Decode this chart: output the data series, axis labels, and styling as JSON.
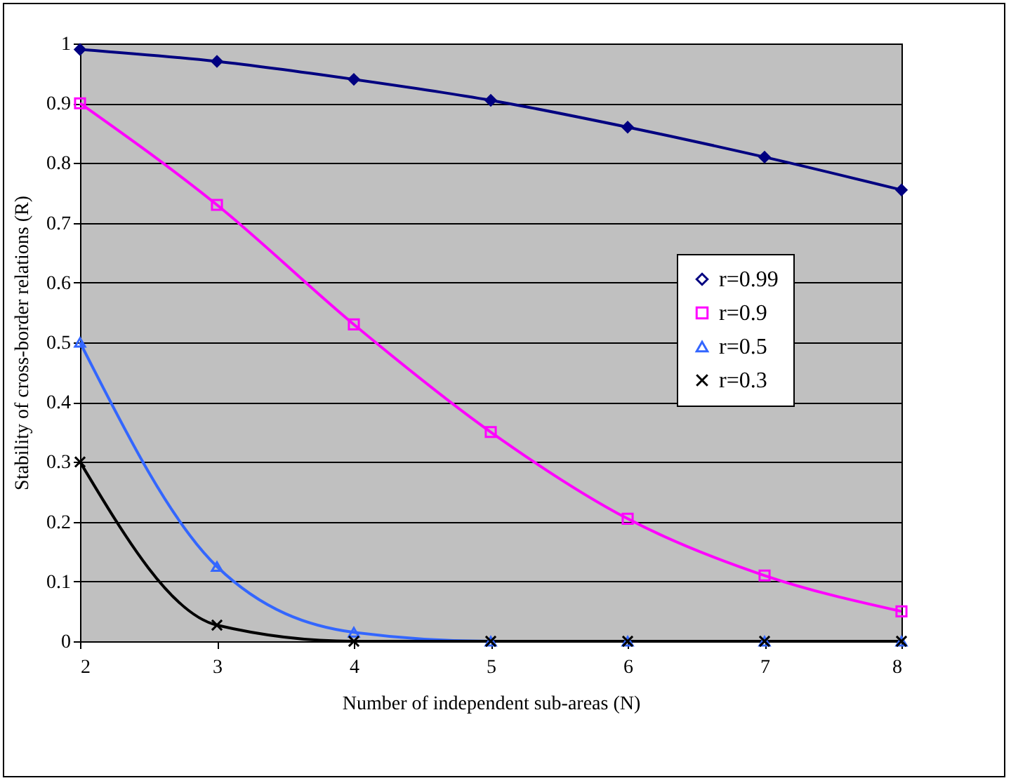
{
  "chart_data": {
    "type": "line",
    "xlabel": "Number of independent sub-areas (N)",
    "ylabel": "Stability of cross-border relations (R)",
    "x": [
      2,
      3,
      4,
      5,
      6,
      7,
      8
    ],
    "xlim": [
      2,
      8
    ],
    "xticks": [
      2,
      3,
      4,
      5,
      6,
      7,
      8
    ],
    "ylim": [
      0,
      1
    ],
    "yticks": [
      0,
      0.1,
      0.2,
      0.3,
      0.4,
      0.5,
      0.6,
      0.7,
      0.8,
      0.9,
      1
    ],
    "grid": "y",
    "legend": "right",
    "line_style": "solid",
    "series": [
      {
        "name": "r=0.99",
        "color": "#000080",
        "marker": "diamond",
        "values": [
          0.99,
          0.97,
          0.94,
          0.905,
          0.86,
          0.81,
          0.755
        ]
      },
      {
        "name": "r=0.9",
        "color": "#ff00ff",
        "marker": "square",
        "values": [
          0.9,
          0.73,
          0.53,
          0.35,
          0.205,
          0.11,
          0.05
        ]
      },
      {
        "name": "r=0.5",
        "color": "#3366ff",
        "marker": "triangle",
        "values": [
          0.5,
          0.125,
          0.015,
          0,
          0,
          0,
          0
        ]
      },
      {
        "name": "r=0.3",
        "color": "#000000",
        "marker": "cross",
        "values": [
          0.3,
          0.027,
          0,
          0,
          0,
          0,
          0
        ]
      }
    ]
  }
}
